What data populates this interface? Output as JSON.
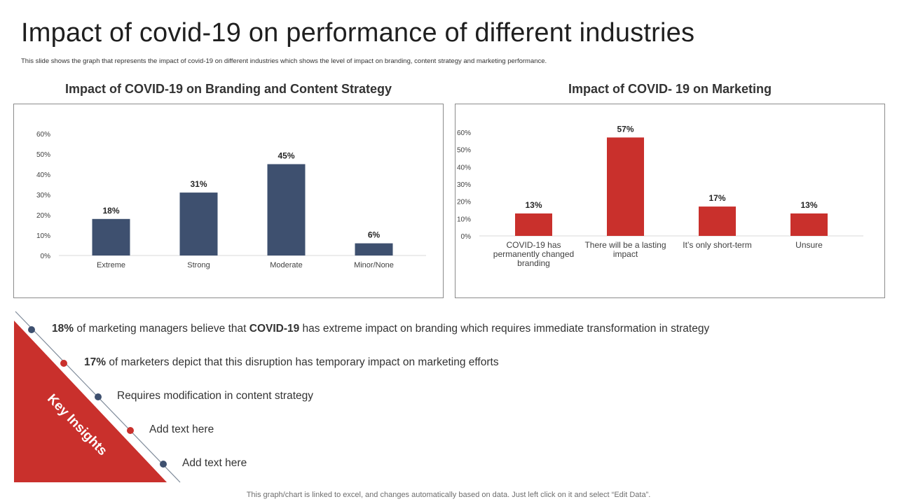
{
  "page": {
    "title": "Impact of covid-19 on performance of different industries",
    "subtitle": "This slide shows the graph that represents the impact of covid-19 on different industries which shows the level of impact on branding, content strategy and marketing performance.",
    "footer": "This graph/chart is linked to excel, and changes automatically based on data. Just left click on it and select “Edit Data”."
  },
  "colors": {
    "navy": "#3e506f",
    "red": "#c9302c",
    "axis_text": "#404040",
    "grid": "#d9d9d9"
  },
  "chart_data": [
    {
      "type": "bar",
      "title": "Impact of COVID-19 on Branding and Content Strategy",
      "categories": [
        "Extreme",
        "Strong",
        "Moderate",
        "Minor/None"
      ],
      "values": [
        18,
        31,
        45,
        6
      ],
      "data_labels": [
        "18%",
        "31%",
        "45%",
        "6%"
      ],
      "yticks": [
        0,
        10,
        20,
        30,
        40,
        50,
        60
      ],
      "ytick_labels": [
        "0%",
        "10%",
        "20%",
        "30%",
        "40%",
        "50%",
        "60%"
      ],
      "ylim": [
        0,
        60
      ],
      "xlabel": "",
      "ylabel": "",
      "color": "#3e506f"
    },
    {
      "type": "bar",
      "title": "Impact of COVID- 19 on Marketing",
      "categories": [
        "COVID-19 has permanently changed branding",
        "There will be a lasting impact",
        "It’s only short-term",
        "Unsure"
      ],
      "category_lines": [
        [
          "COVID-19 has",
          "permanently changed",
          "branding"
        ],
        [
          "There will be a lasting",
          "impact"
        ],
        [
          "It’s only short-term"
        ],
        [
          "Unsure"
        ]
      ],
      "values": [
        13,
        57,
        17,
        13
      ],
      "data_labels": [
        "13%",
        "57%",
        "17%",
        "13%"
      ],
      "yticks": [
        0,
        10,
        20,
        30,
        40,
        50,
        60
      ],
      "ytick_labels": [
        "0%",
        "10%",
        "20%",
        "30%",
        "40%",
        "50%",
        "60%"
      ],
      "ylim": [
        0,
        60
      ],
      "xlabel": "",
      "ylabel": "",
      "color": "#c9302c"
    }
  ],
  "key_insights": {
    "label": "Key Insights",
    "items": [
      {
        "bold1": "18%",
        "text1": " of marketing managers believe that ",
        "bold2": "COVID-19",
        "text2": " has extreme impact on branding which requires immediate transformation in strategy",
        "dot": "navy"
      },
      {
        "bold1": "17%",
        "text1": " of marketers depict that this disruption has temporary impact on marketing efforts",
        "bold2": "",
        "text2": "",
        "dot": "red"
      },
      {
        "bold1": "",
        "text1": "Requires modification in content strategy",
        "bold2": "",
        "text2": "",
        "dot": "navy"
      },
      {
        "bold1": "",
        "text1": "Add text here",
        "bold2": "",
        "text2": "",
        "dot": "red"
      },
      {
        "bold1": "",
        "text1": "Add text here",
        "bold2": "",
        "text2": "",
        "dot": "navy"
      }
    ]
  }
}
